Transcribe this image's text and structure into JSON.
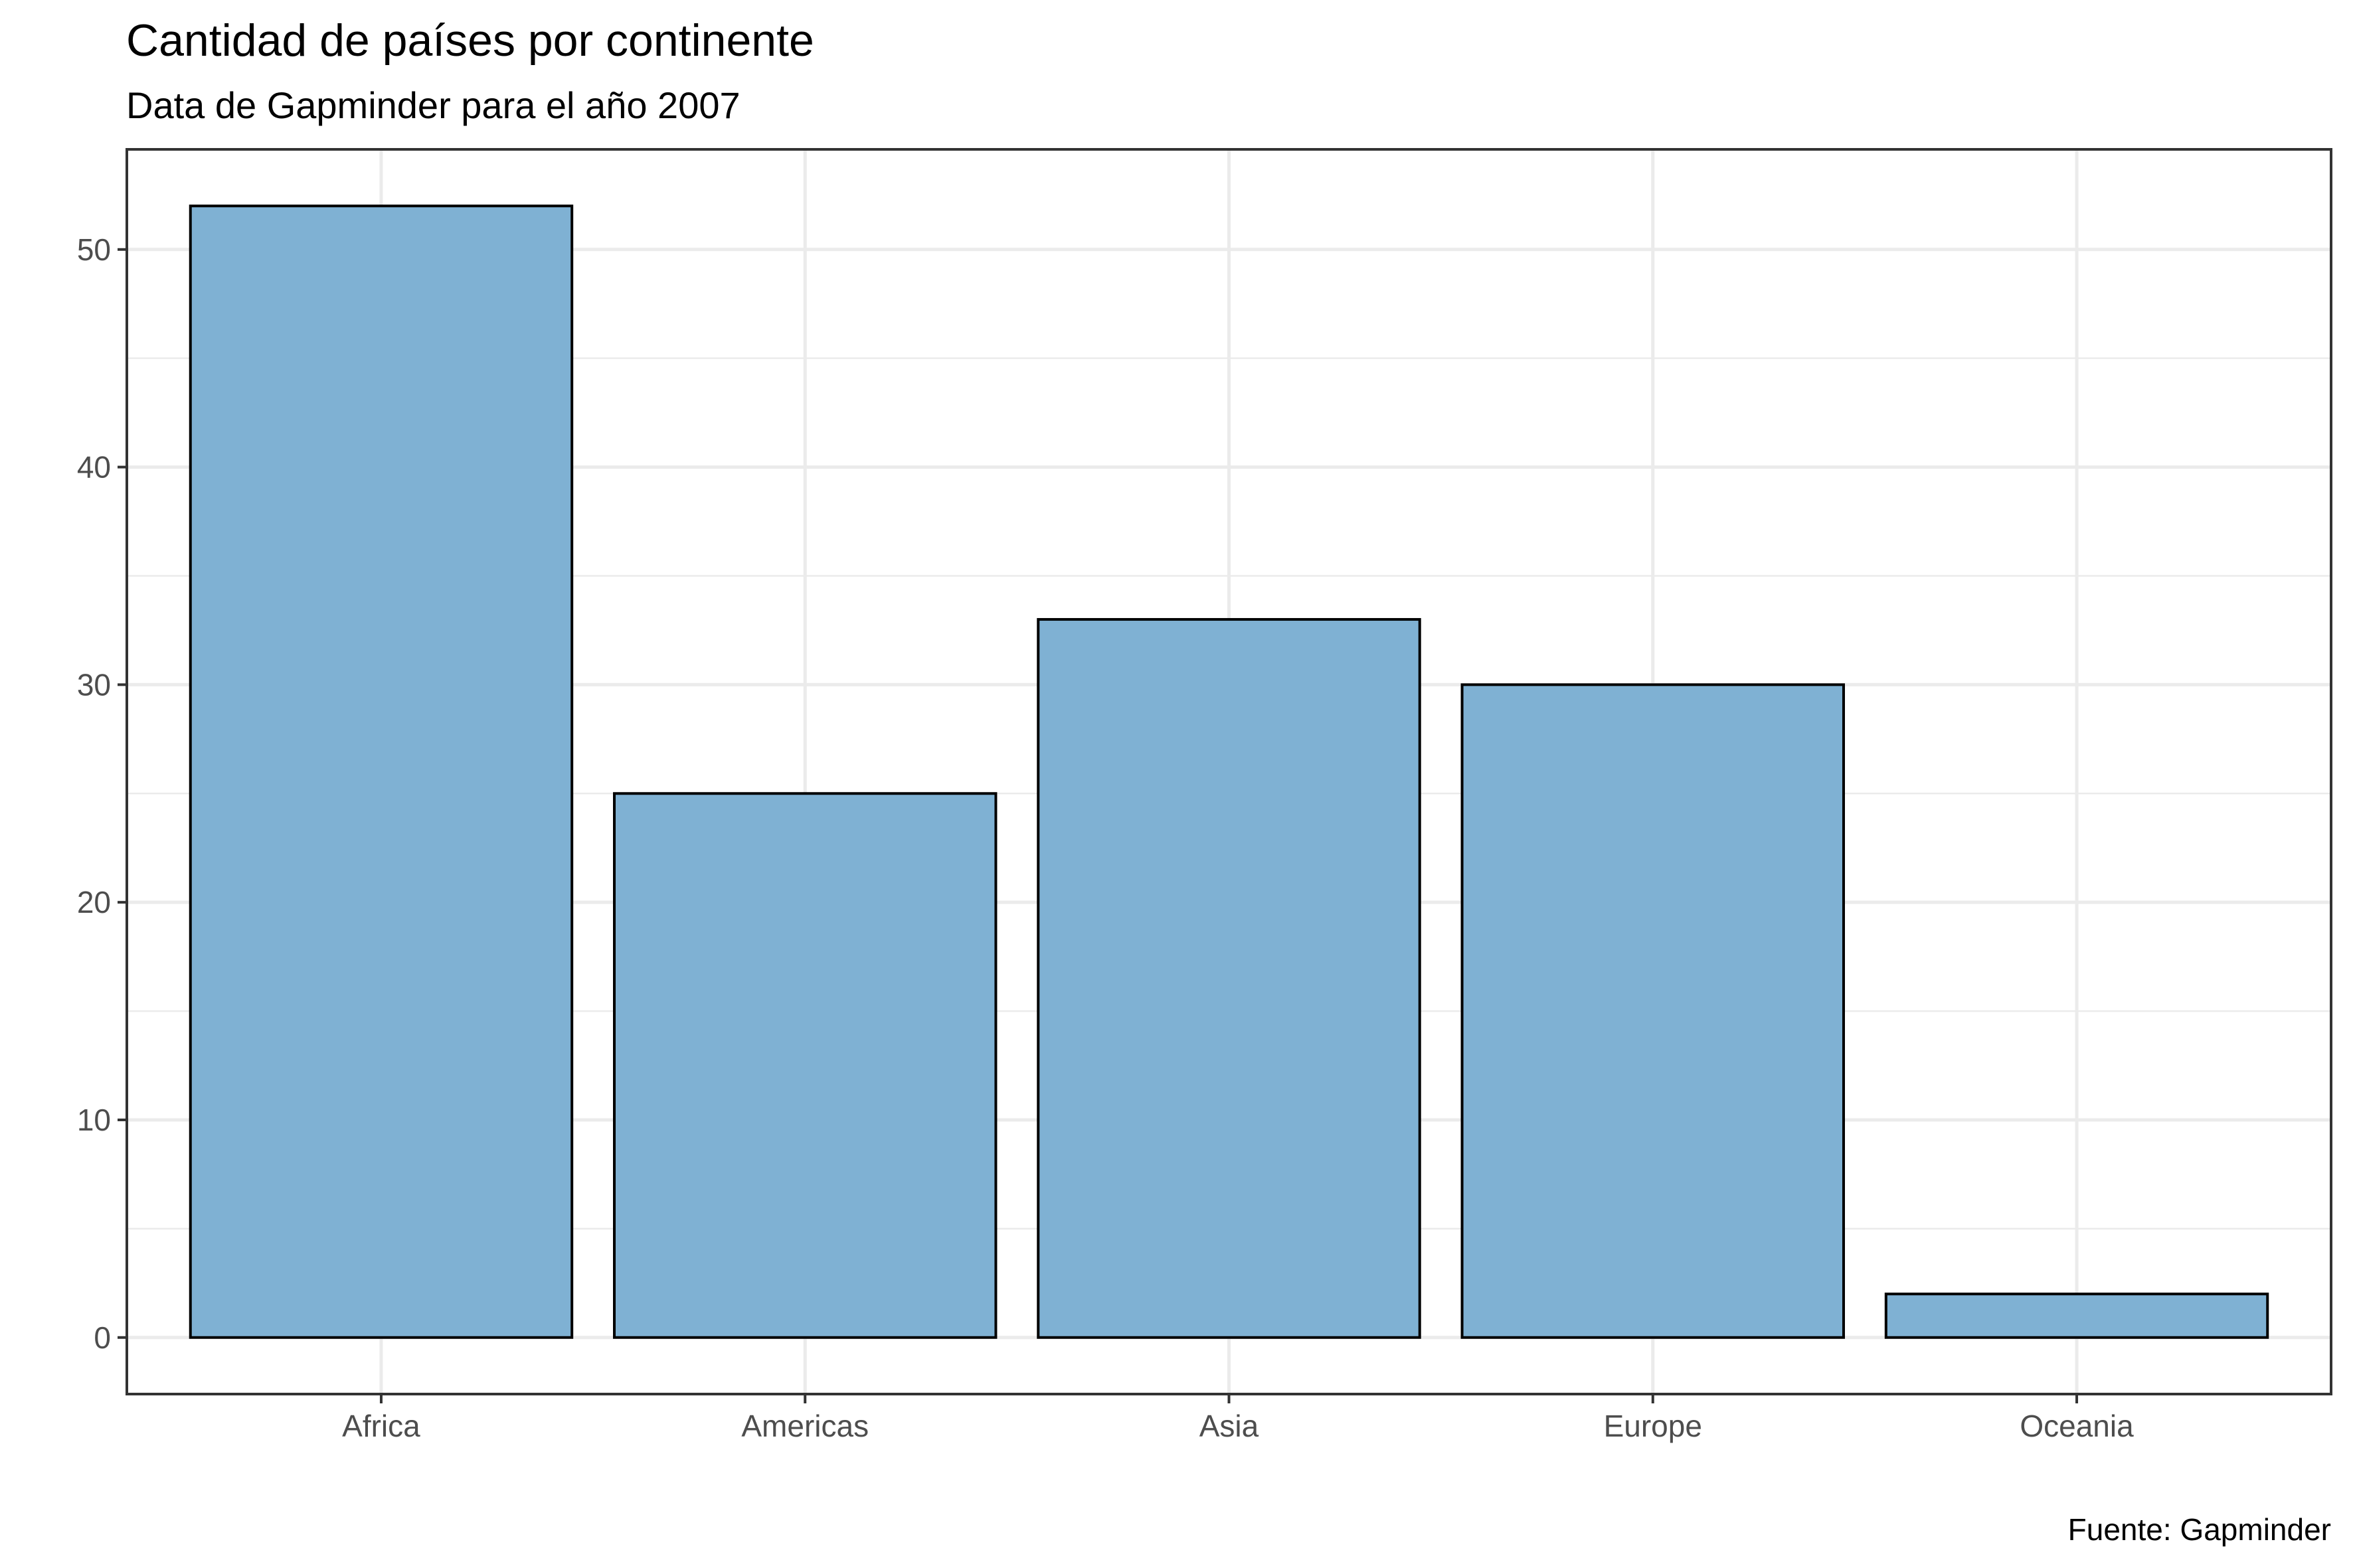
{
  "chart_data": {
    "type": "bar",
    "title": "Cantidad de países por continente",
    "subtitle": "Data de Gapminder para el año 2007",
    "caption": "Fuente: Gapminder",
    "xlabel": "",
    "ylabel": "",
    "categories": [
      "Africa",
      "Americas",
      "Asia",
      "Europe",
      "Oceania"
    ],
    "values": [
      52,
      25,
      33,
      30,
      2
    ],
    "ylim": [
      -2.6,
      54.6
    ],
    "yticks": [
      0,
      10,
      20,
      30,
      40,
      50
    ],
    "ytick_labels": [
      "0",
      "10",
      "20",
      "30",
      "40",
      "50"
    ],
    "yminor": [
      5,
      15,
      25,
      35,
      45
    ],
    "grid": true,
    "bar_fill": "#7fb1d3",
    "bar_outline": "#000000"
  }
}
